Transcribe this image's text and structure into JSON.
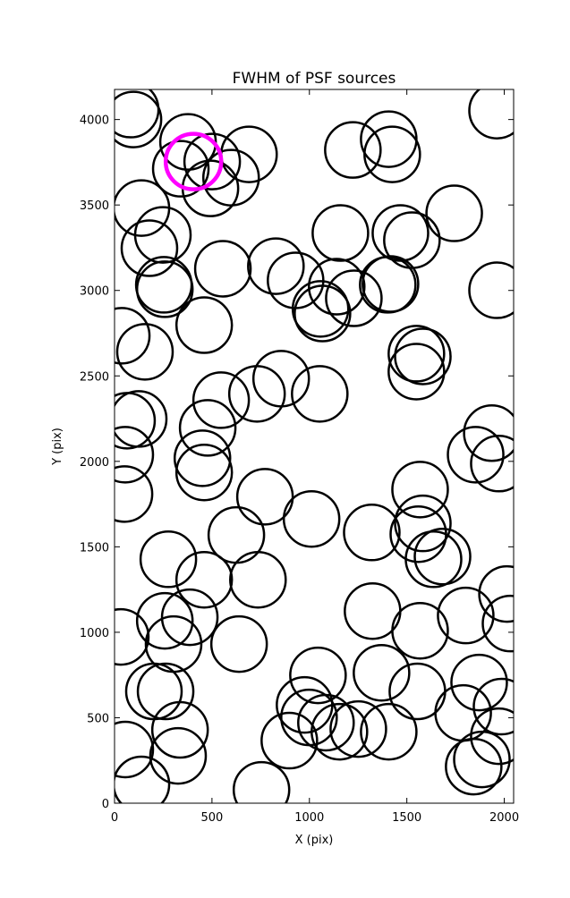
{
  "chart_data": {
    "type": "scatter",
    "title": "FWHM of PSF sources",
    "x_label": "X (pix)",
    "y_label": "Y (pix)",
    "xlim": [
      0,
      2048
    ],
    "ylim": [
      0,
      4176
    ],
    "xticks": [
      0,
      500,
      1000,
      1500,
      2000
    ],
    "yticks": [
      0,
      500,
      1000,
      1500,
      2000,
      2500,
      3000,
      3500,
      4000
    ],
    "color": "#000000",
    "x": [
      83,
      97,
      377,
      340,
      501,
      492,
      598,
      690,
      138,
      248,
      179,
      253,
      258,
      556,
      828,
      929,
      1140,
      1057,
      1067,
      1228,
      1159,
      1402,
      1416,
      1223,
      1407,
      1425,
      1467,
      1526,
      1743,
      1963,
      1963,
      1549,
      1582,
      1549,
      37,
      156,
      460,
      64,
      124,
      55,
      51,
      478,
      451,
      460,
      547,
      731,
      855,
      1053,
      772,
      1011,
      625,
      276,
      460,
      736,
      386,
      258,
      303,
      639,
      32,
      55,
      138,
      202,
      262,
      336,
      326,
      754,
      897,
      975,
      998,
      1044,
      1085,
      1154,
      1251,
      1407,
      1370,
      1554,
      1320,
      1324,
      1568,
      1568,
      1582,
      1559,
      1637,
      1683,
      1802,
      1789,
      1871,
      1843,
      1885,
      1972,
      1986,
      2014,
      2032,
      1853,
      1936,
      1972
    ],
    "y": [
      4058,
      4000,
      3869,
      3712,
      3754,
      3597,
      3660,
      3796,
      3482,
      3325,
      3247,
      3033,
      3007,
      3127,
      3142,
      3059,
      3022,
      2892,
      2865,
      2954,
      3336,
      3033,
      3038,
      3822,
      3885,
      3796,
      3336,
      3294,
      3451,
      4052,
      3001,
      2630,
      2614,
      2525,
      2735,
      2641,
      2797,
      2238,
      2248,
      2039,
      1809,
      2196,
      2018,
      1935,
      2358,
      2395,
      2484,
      2395,
      1793,
      1663,
      1569,
      1427,
      1307,
      1307,
      1088,
      1067,
      931,
      931,
      973,
      314,
      110,
      654,
      654,
      429,
      277,
      78,
      366,
      575,
      502,
      748,
      471,
      418,
      434,
      418,
      763,
      654,
      1584,
      1124,
      1009,
      1835,
      1637,
      1574,
      1427,
      1443,
      1098,
      528,
      706,
      214,
      256,
      392,
      565,
      1224,
      1051,
      2039,
      2165,
      1987
    ],
    "highlight": {
      "x": 405,
      "y": 3754,
      "color": "#ff00ff"
    }
  }
}
